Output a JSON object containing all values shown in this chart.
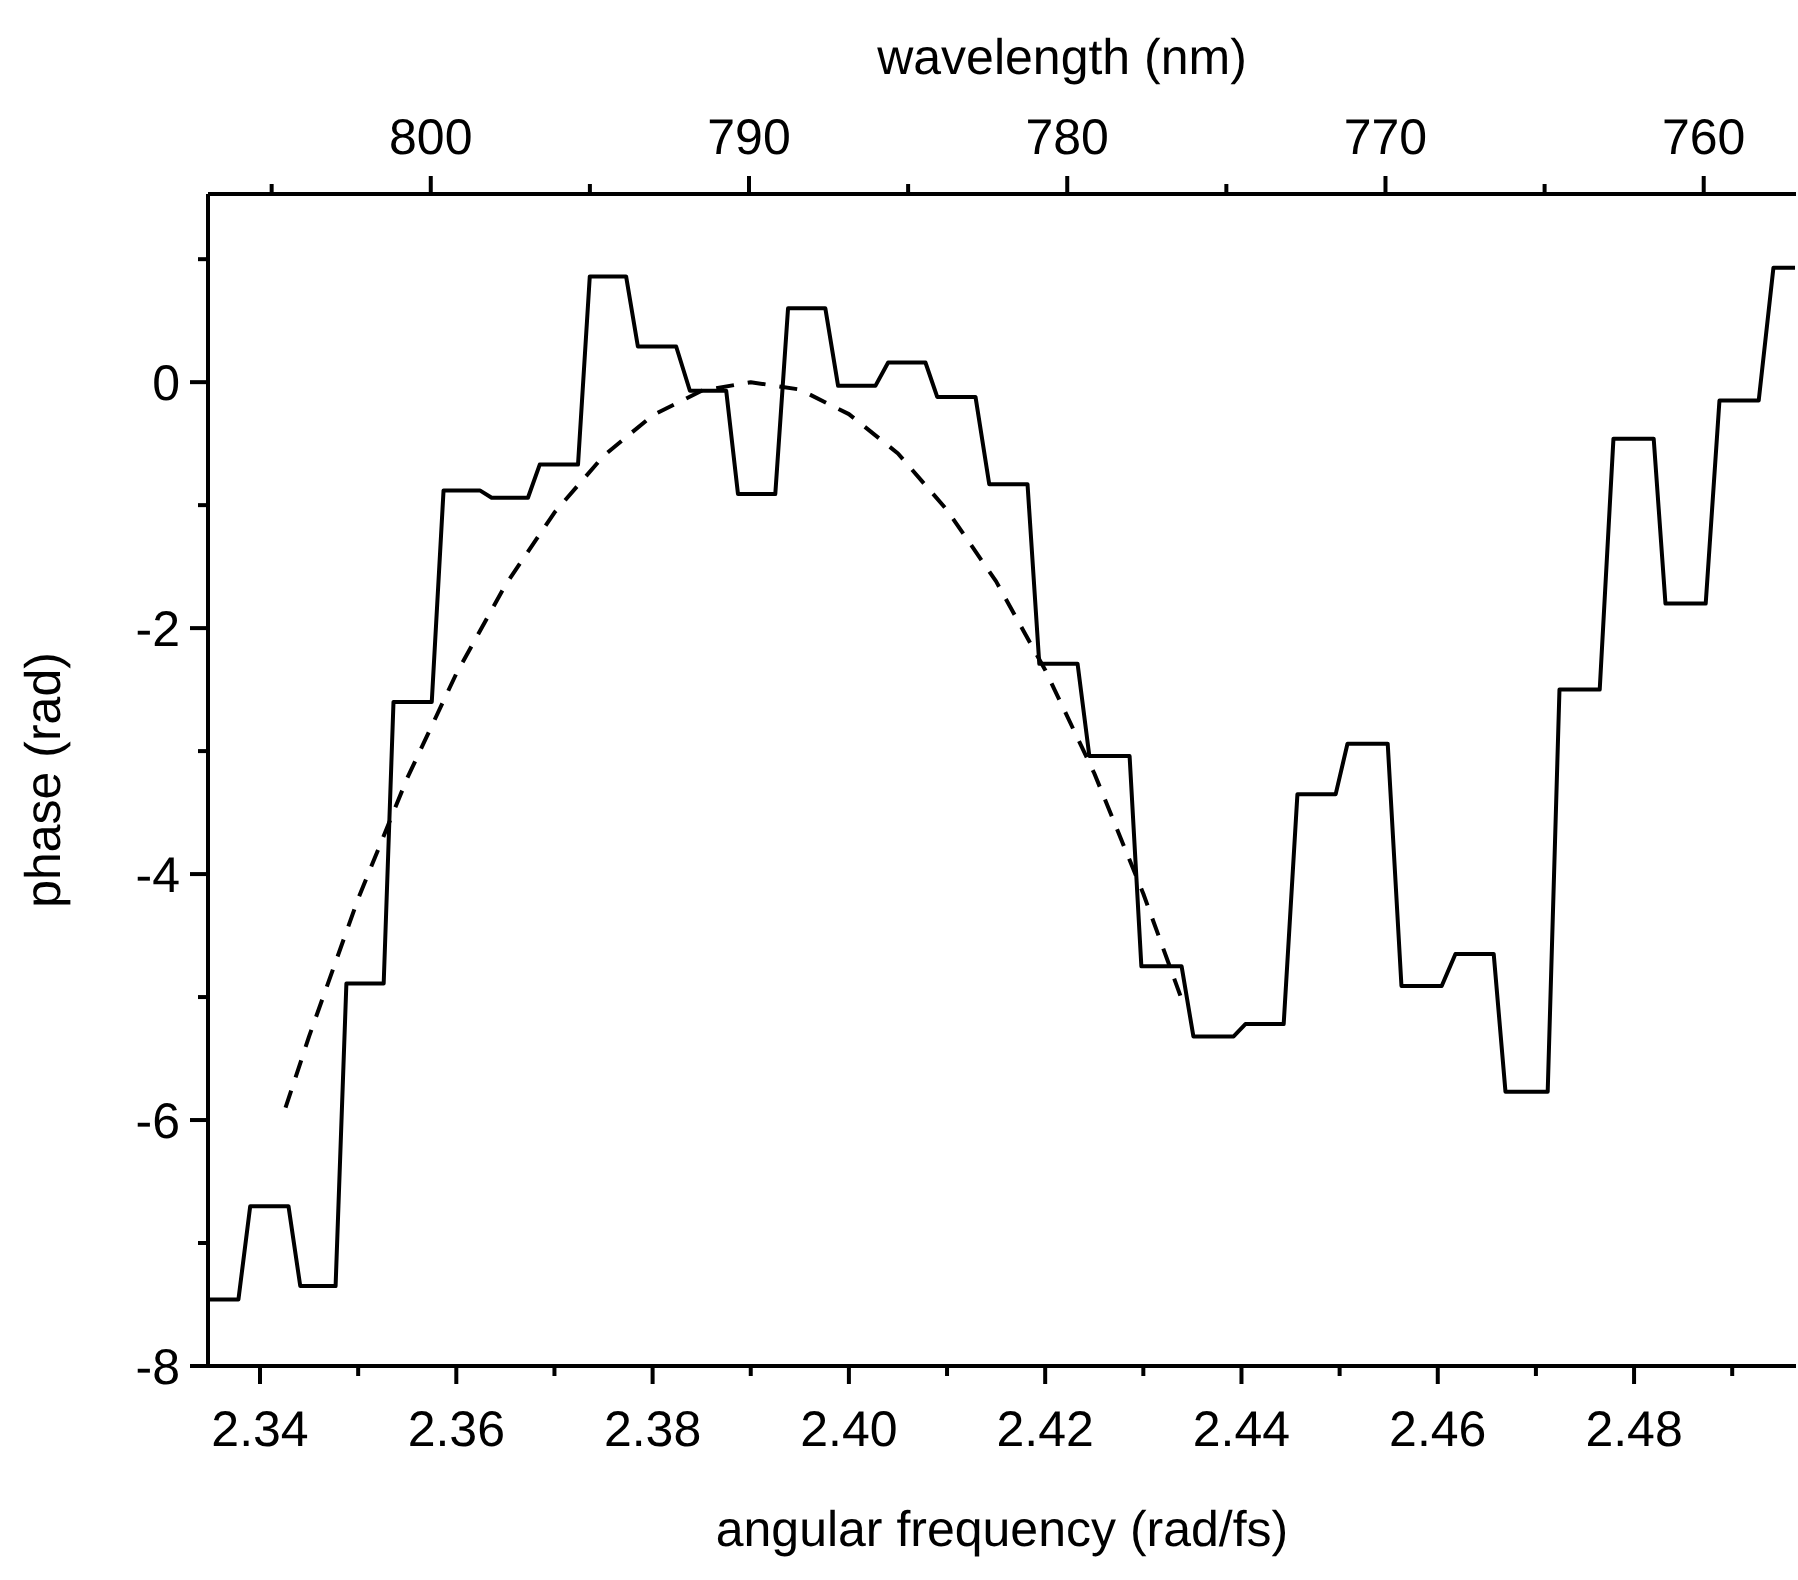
{
  "chart_data": {
    "type": "line",
    "xlabel": "angular frequency (rad/fs)",
    "ylabel": "phase (rad)",
    "x2label": "wavelength (nm)",
    "xlim": [
      2.3347,
      2.4965
    ],
    "ylim": [
      -8,
      1.53
    ],
    "x2lim": [
      807.0,
      757.1
    ],
    "xticks": [
      {
        "value": 2.34,
        "label": "2.34"
      },
      {
        "value": 2.35,
        "label": null
      },
      {
        "value": 2.36,
        "label": "2.36"
      },
      {
        "value": 2.37,
        "label": null
      },
      {
        "value": 2.38,
        "label": "2.38"
      },
      {
        "value": 2.39,
        "label": null
      },
      {
        "value": 2.4,
        "label": "2.40"
      },
      {
        "value": 2.41,
        "label": null
      },
      {
        "value": 2.42,
        "label": "2.42"
      },
      {
        "value": 2.43,
        "label": null
      },
      {
        "value": 2.44,
        "label": "2.44"
      },
      {
        "value": 2.45,
        "label": null
      },
      {
        "value": 2.46,
        "label": "2.46"
      },
      {
        "value": 2.47,
        "label": null
      },
      {
        "value": 2.48,
        "label": "2.48"
      },
      {
        "value": 2.49,
        "label": null
      }
    ],
    "yticks": [
      -8,
      {
        "value": -7,
        "label": null
      },
      -6,
      {
        "value": -5,
        "label": null
      },
      -4,
      {
        "value": -3,
        "label": null
      },
      -2,
      {
        "value": -1,
        "label": null
      },
      0,
      {
        "value": 1,
        "label": null
      }
    ],
    "x2ticks": [
      {
        "value": 805,
        "label": null
      },
      800,
      {
        "value": 795,
        "label": null
      },
      790,
      {
        "value": 785,
        "label": null
      },
      780,
      {
        "value": 775,
        "label": null
      },
      770,
      {
        "value": 765,
        "label": null
      },
      760
    ],
    "grid": false,
    "marker": "none",
    "series": [
      {
        "color": "#000000",
        "line_style": "solid",
        "x": [
          2.3349,
          2.3378,
          2.339,
          2.3429,
          2.3441,
          2.3477,
          2.3488,
          2.3526,
          2.3536,
          2.3575,
          2.3587,
          2.3624,
          2.3636,
          2.3673,
          2.3685,
          2.3724,
          2.3736,
          2.3773,
          2.3785,
          2.3824,
          2.3838,
          2.3875,
          2.3887,
          2.3925,
          2.3938,
          2.3976,
          2.3989,
          2.4027,
          2.404,
          2.4078,
          2.409,
          2.4129,
          2.4143,
          2.4182,
          2.4194,
          2.4233,
          2.4245,
          2.4286,
          2.4298,
          2.4339,
          2.4351,
          2.4392,
          2.4404,
          2.4443,
          2.4457,
          2.4496,
          2.4508,
          2.4549,
          2.4563,
          2.4604,
          2.4618,
          2.4657,
          2.4669,
          2.4712,
          2.4724,
          2.4765,
          2.4779,
          2.482,
          2.4832,
          2.4873,
          2.4887,
          2.4927,
          2.4942,
          2.4964
        ],
        "values": [
          -7.46,
          -7.46,
          -6.7,
          -6.7,
          -7.35,
          -7.35,
          -4.89,
          -4.89,
          -2.6,
          -2.6,
          -0.88,
          -0.88,
          -0.94,
          -0.94,
          -0.67,
          -0.67,
          0.86,
          0.86,
          0.29,
          0.29,
          -0.07,
          -0.07,
          -0.91,
          -0.91,
          0.6,
          0.6,
          -0.03,
          -0.03,
          0.16,
          0.16,
          -0.12,
          -0.12,
          -0.83,
          -0.83,
          -2.29,
          -2.29,
          -3.04,
          -3.04,
          -4.75,
          -4.75,
          -5.32,
          -5.32,
          -5.22,
          -5.22,
          -3.35,
          -3.35,
          -2.94,
          -2.94,
          -4.91,
          -4.91,
          -4.65,
          -4.65,
          -5.77,
          -5.77,
          -2.5,
          -2.5,
          -0.46,
          -0.46,
          -1.8,
          -1.8,
          -0.15,
          -0.15,
          0.93,
          0.93
        ]
      },
      {
        "color": "#000000",
        "line_style": "dashed",
        "x": [
          2.3426,
          2.345,
          2.35,
          2.355,
          2.36,
          2.365,
          2.37,
          2.375,
          2.38,
          2.385,
          2.39,
          2.395,
          2.4,
          2.405,
          2.41,
          2.415,
          2.42,
          2.425,
          2.43,
          2.4341
        ],
        "values": [
          -5.9,
          -5.32,
          -4.2,
          -3.22,
          -2.37,
          -1.65,
          -1.06,
          -0.6,
          -0.27,
          -0.07,
          0,
          -0.06,
          -0.26,
          -0.58,
          -1.04,
          -1.62,
          -2.34,
          -3.18,
          -4.16,
          -5.06
        ]
      }
    ]
  }
}
